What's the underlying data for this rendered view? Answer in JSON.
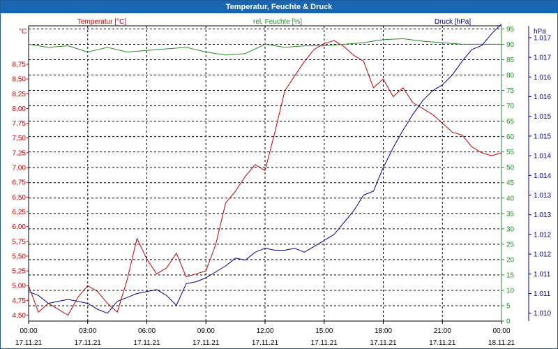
{
  "window": {
    "title": "Temperatur, Feuchte & Druck"
  },
  "colors": {
    "temperature": "#c00000",
    "humidity": "#228b22",
    "pressure": "#00008b",
    "titlebar": "#1a66b0"
  },
  "chart_data": {
    "type": "line",
    "title": "Temperatur, Feuchte & Druck",
    "grid": true,
    "x_ticks": [
      {
        "time": "00:00",
        "date": "17.11.21"
      },
      {
        "time": "03:00",
        "date": "17.11.21"
      },
      {
        "time": "06:00",
        "date": "17.11.21"
      },
      {
        "time": "09:00",
        "date": "17.11.21"
      },
      {
        "time": "12:00",
        "date": "17.11.21"
      },
      {
        "time": "15:00",
        "date": "17.11.21"
      },
      {
        "time": "18:00",
        "date": "17.11.21"
      },
      {
        "time": "21:00",
        "date": "17.11.21"
      },
      {
        "time": "00:00",
        "date": "18.11.21"
      }
    ],
    "axes": {
      "temperature": {
        "label": "Temperatur [°C]",
        "unit": "°C",
        "range": [
          4.4,
          9.4
        ],
        "ticks": [
          "4,50",
          "4,75",
          "5,00",
          "5,25",
          "5,50",
          "5,75",
          "6,00",
          "6,25",
          "6,50",
          "6,75",
          "7,00",
          "7,25",
          "7,50",
          "7,75",
          "8,00",
          "8,25",
          "8,50",
          "8,75"
        ],
        "tick_values": [
          4.5,
          4.75,
          5.0,
          5.25,
          5.5,
          5.75,
          6.0,
          6.25,
          6.5,
          6.75,
          7.0,
          7.25,
          7.5,
          7.75,
          8.0,
          8.25,
          8.5,
          8.75
        ]
      },
      "humidity": {
        "label": "rel. Feuchte [%]",
        "unit": "%",
        "range": [
          0,
          96
        ],
        "ticks": [
          "0",
          "5",
          "10",
          "15",
          "20",
          "25",
          "30",
          "35",
          "40",
          "45",
          "50",
          "55",
          "60",
          "65",
          "70",
          "75",
          "80",
          "85",
          "90",
          "95"
        ],
        "tick_values": [
          0,
          5,
          10,
          15,
          20,
          25,
          30,
          35,
          40,
          45,
          50,
          55,
          60,
          65,
          70,
          75,
          80,
          85,
          90,
          95
        ]
      },
      "pressure": {
        "label": "Druck [hPa]",
        "unit": "hPa",
        "range": [
          1009.8,
          1017.3
        ],
        "ticks": [
          "1.010",
          "1.011",
          "1.011",
          "1.012",
          "1.012",
          "1.013",
          "1.013",
          "1.014",
          "1.014",
          "1.015",
          "1.015",
          "1.016",
          "1.016",
          "1.017",
          "1.017"
        ],
        "tick_values": [
          1010.0,
          1010.5,
          1011.0,
          1011.5,
          1012.0,
          1012.5,
          1013.0,
          1013.5,
          1014.0,
          1014.5,
          1015.0,
          1015.5,
          1016.0,
          1016.5,
          1017.0
        ]
      }
    },
    "series": [
      {
        "name": "Temperatur [°C]",
        "axis": "temperature",
        "x": [
          0,
          0.5,
          1,
          1.5,
          2,
          2.5,
          3,
          3.5,
          4,
          4.5,
          5,
          5.5,
          6,
          6.5,
          7,
          7.5,
          8,
          8.5,
          9,
          9.5,
          10,
          10.5,
          11,
          11.5,
          12,
          12.5,
          13,
          13.5,
          14,
          14.5,
          15,
          15.5,
          16,
          16.5,
          17,
          17.5,
          18,
          18.5,
          19,
          19.5,
          20,
          20.5,
          21,
          21.5,
          22,
          22.5,
          23,
          23.5,
          24
        ],
        "y": [
          5.0,
          4.55,
          4.7,
          4.6,
          4.5,
          4.8,
          5.0,
          4.9,
          4.7,
          4.55,
          5.1,
          5.8,
          5.45,
          5.2,
          5.3,
          5.55,
          5.15,
          5.2,
          5.25,
          5.7,
          6.4,
          6.6,
          6.85,
          7.05,
          6.95,
          7.6,
          8.3,
          8.55,
          8.8,
          9.0,
          9.1,
          9.15,
          9.05,
          8.9,
          8.8,
          8.35,
          8.5,
          8.2,
          8.35,
          8.1,
          8.0,
          7.9,
          7.75,
          7.6,
          7.55,
          7.35,
          7.25,
          7.2,
          7.25
        ]
      },
      {
        "name": "rel. Feuchte [%]",
        "axis": "humidity",
        "x": [
          0,
          1,
          2,
          3,
          4,
          5,
          6,
          7,
          8,
          9,
          10,
          11,
          12,
          13,
          14,
          15,
          16,
          17,
          18,
          19,
          20,
          21,
          22,
          23,
          24
        ],
        "y": [
          90,
          89,
          89.5,
          87.5,
          89,
          87.5,
          88,
          88.5,
          89,
          87.5,
          86.5,
          87,
          90,
          89,
          89.5,
          89.5,
          90,
          90.5,
          91.5,
          91.8,
          91,
          90.5,
          90,
          90,
          90
        ]
      },
      {
        "name": "Druck [hPa]",
        "axis": "pressure",
        "x": [
          0,
          0.5,
          1,
          1.5,
          2,
          2.5,
          3,
          3.5,
          4,
          4.5,
          5,
          5.5,
          6,
          6.5,
          7,
          7.5,
          8,
          8.5,
          9,
          9.5,
          10,
          10.5,
          11,
          11.5,
          12,
          12.5,
          13,
          13.5,
          14,
          14.5,
          15,
          15.5,
          16,
          16.5,
          17,
          17.5,
          18,
          18.5,
          19,
          19.5,
          20,
          20.5,
          21,
          21.5,
          22,
          22.5,
          23,
          23.5,
          24
        ],
        "y": [
          1010.55,
          1010.45,
          1010.25,
          1010.3,
          1010.35,
          1010.3,
          1010.25,
          1010.1,
          1010.0,
          1010.3,
          1010.4,
          1010.5,
          1010.55,
          1010.6,
          1010.45,
          1010.2,
          1010.75,
          1010.8,
          1010.9,
          1011.05,
          1011.2,
          1011.4,
          1011.35,
          1011.55,
          1011.65,
          1011.6,
          1011.6,
          1011.65,
          1011.55,
          1011.7,
          1011.85,
          1012.0,
          1012.3,
          1012.6,
          1013.0,
          1013.1,
          1013.7,
          1014.2,
          1014.65,
          1015.05,
          1015.4,
          1015.65,
          1015.8,
          1016.05,
          1016.4,
          1016.7,
          1016.8,
          1017.1,
          1017.35
        ]
      }
    ]
  }
}
